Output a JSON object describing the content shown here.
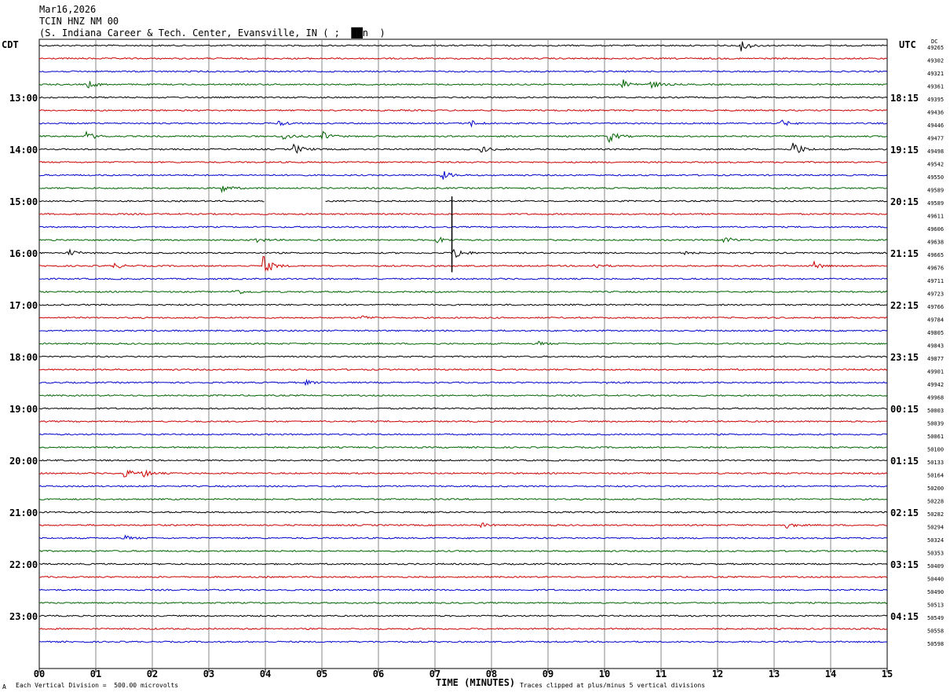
{
  "header": {
    "date": "Mar16,2026",
    "station": "TCIN HNZ NM 00",
    "location": "(S. Indiana Career & Tech. Center, Evansville, IN ( ;  ██n  )"
  },
  "left_timezone": "CDT",
  "right_timezone": "UTC",
  "dc_label": "DC",
  "chart_data": {
    "type": "line",
    "title": "TCIN HNZ NM 00",
    "xlabel": "TIME (MINUTES)",
    "xlim": [
      0,
      15
    ],
    "x_ticks": [
      "00",
      "01",
      "02",
      "03",
      "04",
      "05",
      "06",
      "07",
      "08",
      "09",
      "10",
      "11",
      "12",
      "13",
      "14",
      "15"
    ],
    "trace_colors": [
      "#000000",
      "#cc0000",
      "#0000cc",
      "#006400"
    ],
    "left_hour_labels": [
      "13:00",
      "14:00",
      "15:00",
      "16:00",
      "17:00",
      "18:00",
      "19:00",
      "20:00",
      "21:00",
      "22:00",
      "23:00"
    ],
    "right_hour_labels": [
      "18:15",
      "19:15",
      "20:15",
      "21:15",
      "22:15",
      "23:15",
      "00:15",
      "01:15",
      "02:15",
      "03:15",
      "04:15"
    ],
    "dc_offsets": [
      "49265",
      "49302",
      "49321",
      "49361",
      "49395",
      "49436",
      "49446",
      "49477",
      "49498",
      "49542",
      "49550",
      "49589",
      "49589",
      "49611",
      "49606",
      "49638",
      "49665",
      "49676",
      "49711",
      "49723",
      "49766",
      "49784",
      "49805",
      "49843",
      "49877",
      "49901",
      "49942",
      "49968",
      "50003",
      "50039",
      "50061",
      "50100",
      "50133",
      "50164",
      "50200",
      "50228",
      "50282",
      "50294",
      "50324",
      "50353",
      "50409",
      "50440",
      "50490",
      "50513",
      "50549",
      "50558",
      "50598"
    ],
    "events": [
      {
        "trace": 0,
        "minute": 12.4,
        "amp": 8
      },
      {
        "trace": 3,
        "minute": 0.85,
        "amp": 5
      },
      {
        "trace": 3,
        "minute": 10.3,
        "amp": 8
      },
      {
        "trace": 3,
        "minute": 10.8,
        "amp": 6
      },
      {
        "trace": 6,
        "minute": 4.2,
        "amp": 6
      },
      {
        "trace": 6,
        "minute": 7.6,
        "amp": 5
      },
      {
        "trace": 6,
        "minute": 13.1,
        "amp": 5
      },
      {
        "trace": 7,
        "minute": 0.8,
        "amp": 7
      },
      {
        "trace": 7,
        "minute": 4.3,
        "amp": 6
      },
      {
        "trace": 7,
        "minute": 5.0,
        "amp": 6
      },
      {
        "trace": 7,
        "minute": 10.05,
        "amp": 9
      },
      {
        "trace": 8,
        "minute": 4.5,
        "amp": 7
      },
      {
        "trace": 8,
        "minute": 7.8,
        "amp": 5
      },
      {
        "trace": 8,
        "minute": 13.3,
        "amp": 14
      },
      {
        "trace": 10,
        "minute": 7.1,
        "amp": 7
      },
      {
        "trace": 11,
        "minute": 3.2,
        "amp": 6
      },
      {
        "trace": 15,
        "minute": 3.8,
        "amp": 4
      },
      {
        "trace": 15,
        "minute": 7.0,
        "amp": 6
      },
      {
        "trace": 15,
        "minute": 12.1,
        "amp": 5
      },
      {
        "trace": 16,
        "minute": 7.3,
        "amp": 12
      },
      {
        "trace": 16,
        "minute": 0.5,
        "amp": 5
      },
      {
        "trace": 16,
        "minute": 11.3,
        "amp": 4
      },
      {
        "trace": 17,
        "minute": 3.95,
        "amp": 14
      },
      {
        "trace": 17,
        "minute": 1.3,
        "amp": 4
      },
      {
        "trace": 17,
        "minute": 9.8,
        "amp": 4
      },
      {
        "trace": 17,
        "minute": 13.7,
        "amp": 5
      },
      {
        "trace": 19,
        "minute": 3.4,
        "amp": 6
      },
      {
        "trace": 21,
        "minute": 5.7,
        "amp": 3
      },
      {
        "trace": 23,
        "minute": 8.8,
        "amp": 3
      },
      {
        "trace": 26,
        "minute": 4.7,
        "amp": 3
      },
      {
        "trace": 26,
        "minute": 10.0,
        "amp": 3
      },
      {
        "trace": 33,
        "minute": 1.5,
        "amp": 6
      },
      {
        "trace": 33,
        "minute": 1.8,
        "amp": 6
      },
      {
        "trace": 37,
        "minute": 7.8,
        "amp": 3
      },
      {
        "trace": 37,
        "minute": 13.2,
        "amp": 4
      },
      {
        "trace": 38,
        "minute": 1.5,
        "amp": 3
      }
    ],
    "gap": {
      "trace": 12,
      "from_minute": 4.0,
      "to_minute": 5.05
    },
    "spike": {
      "trace": 16,
      "minute": 7.3,
      "top_trace": 12,
      "bottom_trace": 17
    }
  },
  "footer": {
    "scale_text": "Each Vertical Division =  500.00 microvolts",
    "clip_text": "Traces clipped at plus/minus 5 vertical divisions",
    "corner_mark": "A"
  }
}
